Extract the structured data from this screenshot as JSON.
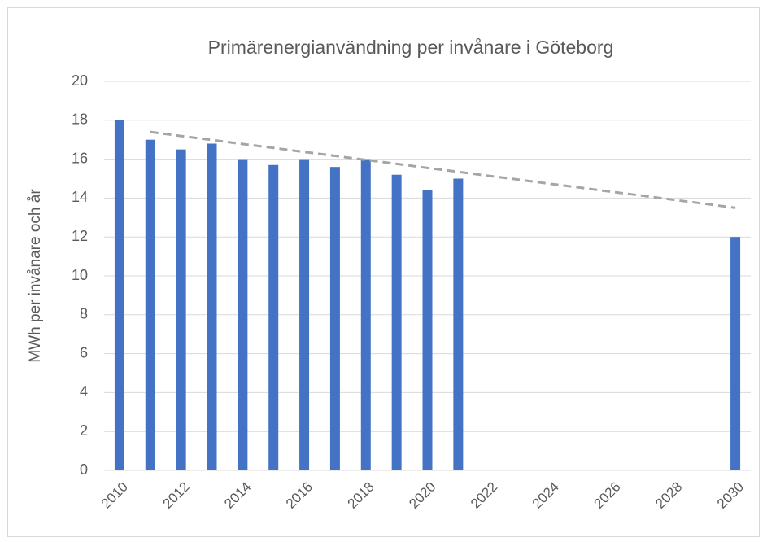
{
  "chart_data": {
    "type": "bar",
    "title": "Primärenergianvändning per invånare i Göteborg",
    "ylabel": "MWh per invånare och år",
    "categories": [
      "2010",
      null,
      "2012",
      null,
      "2014",
      null,
      "2016",
      null,
      "2018",
      null,
      "2020",
      null,
      "2022",
      null,
      "2024",
      null,
      "2026",
      null,
      "2028",
      null,
      "2030"
    ],
    "values": [
      18,
      17,
      16.5,
      16.8,
      16,
      15.7,
      16,
      15.6,
      16,
      15.2,
      14.4,
      15,
      null,
      null,
      null,
      null,
      null,
      null,
      null,
      null,
      12
    ],
    "color": "#4472c4",
    "trendline": {
      "color": "#a5a5a5",
      "values": [
        null,
        17.4,
        17.19,
        16.99,
        16.78,
        16.58,
        16.37,
        16.17,
        15.96,
        15.76,
        15.55,
        15.35,
        15.14,
        14.94,
        14.73,
        14.53,
        14.32,
        14.12,
        13.91,
        13.71,
        13.5
      ]
    },
    "ylim": [
      0,
      20
    ],
    "yticks": [
      0,
      2,
      4,
      6,
      8,
      10,
      12,
      14,
      16,
      18,
      20
    ],
    "grid": true
  }
}
